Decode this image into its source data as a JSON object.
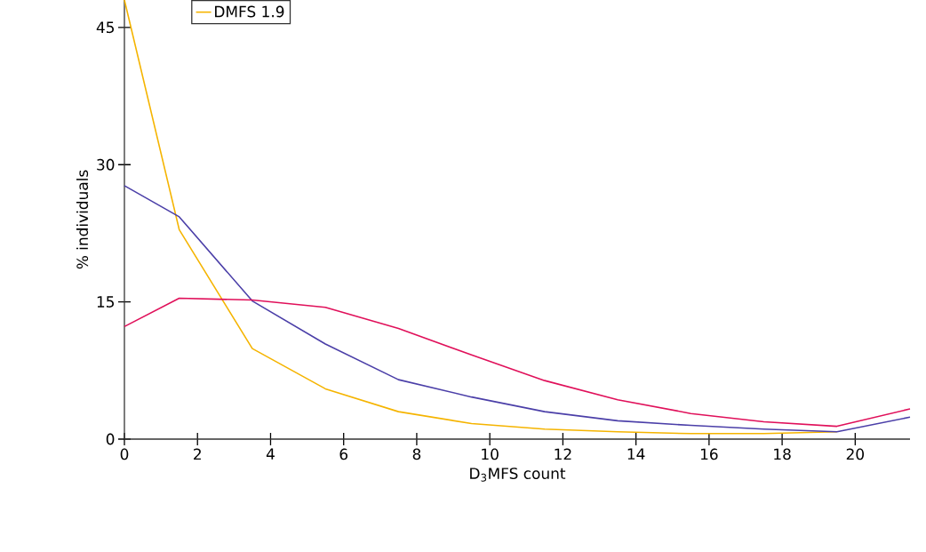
{
  "chart_data": {
    "type": "line",
    "xlabel": "D$_{3}$MFS count",
    "ylabel": "% individuals",
    "x": [
      0,
      1.5,
      3.5,
      5.5,
      7.5,
      9.5,
      11.5,
      13.5,
      15.5,
      17.5,
      19.5,
      21.5
    ],
    "series": [
      {
        "name": "DMFS 1.9",
        "color": "#f5b400",
        "values": [
          48,
          22.9,
          9.9,
          5.5,
          3.0,
          1.7,
          1.1,
          0.8,
          0.6,
          0.6,
          0.8,
          null
        ]
      },
      {
        "color": "#4b3fa8",
        "values": [
          27.7,
          24.3,
          15.1,
          10.4,
          6.5,
          4.6,
          3.0,
          2.0,
          1.5,
          1.1,
          0.8,
          2.4
        ]
      },
      {
        "color": "#e0105a",
        "values": [
          12.3,
          15.4,
          15.2,
          14.4,
          12.1,
          9.2,
          6.4,
          4.3,
          2.8,
          1.9,
          1.4,
          3.3
        ]
      }
    ],
    "xlim": [
      0,
      21.5
    ],
    "ylim": [
      0,
      48
    ],
    "xticks": [
      0,
      2,
      4,
      6,
      8,
      10,
      12,
      14,
      16,
      18,
      20
    ],
    "yticks": [
      0,
      15,
      30,
      45
    ],
    "grid": false,
    "legend": "top",
    "marker": "none",
    "line_style": "solid"
  }
}
